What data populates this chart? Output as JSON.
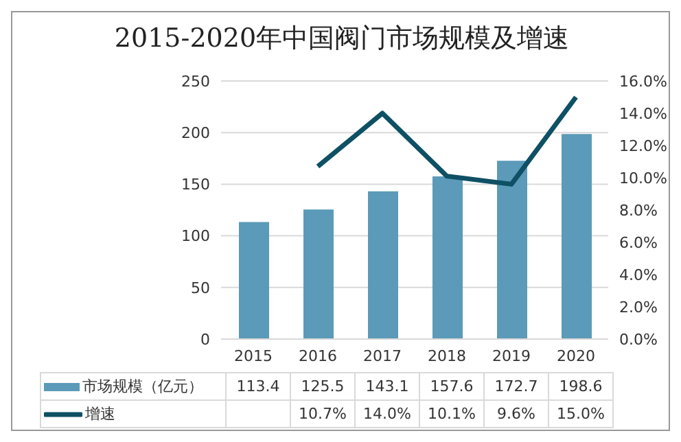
{
  "chart_data": {
    "type": "bar",
    "title": "2015-2020年中国阀门市场规模及增速",
    "categories": [
      "2015",
      "2016",
      "2017",
      "2018",
      "2019",
      "2020"
    ],
    "series": [
      {
        "name": "市场规模（亿元）",
        "color": "#5b9ab8",
        "values": [
          113.4,
          125.5,
          143.1,
          157.6,
          172.7,
          198.6
        ],
        "value_labels": [
          "113.4",
          "125.5",
          "143.1",
          "157.6",
          "172.7",
          "198.6"
        ]
      },
      {
        "name": "增速",
        "type": "line",
        "axis": "y2",
        "color": "#0e5064",
        "values": [
          null,
          10.7,
          14.0,
          10.1,
          9.6,
          15.0
        ],
        "value_labels": [
          null,
          "10.7%",
          "14.0%",
          "10.1%",
          "9.6%",
          "15.0%"
        ]
      }
    ],
    "ylim": [
      0,
      250
    ],
    "yticks": [
      0,
      50,
      100,
      150,
      200,
      250
    ],
    "y2lim": [
      0,
      16
    ],
    "y2ticks": [
      {
        "value": 0,
        "label": "0.0%"
      },
      {
        "value": 2,
        "label": "2.0%"
      },
      {
        "value": 4,
        "label": "4.0%"
      },
      {
        "value": 6,
        "label": "6.0%"
      },
      {
        "value": 8,
        "label": "8.0%"
      },
      {
        "value": 10,
        "label": "10.0%"
      },
      {
        "value": 12,
        "label": "12.0%"
      },
      {
        "value": 14,
        "label": "14.0%"
      },
      {
        "value": 16,
        "label": "16.0%"
      }
    ],
    "grid": "y",
    "legend": "bottom"
  }
}
